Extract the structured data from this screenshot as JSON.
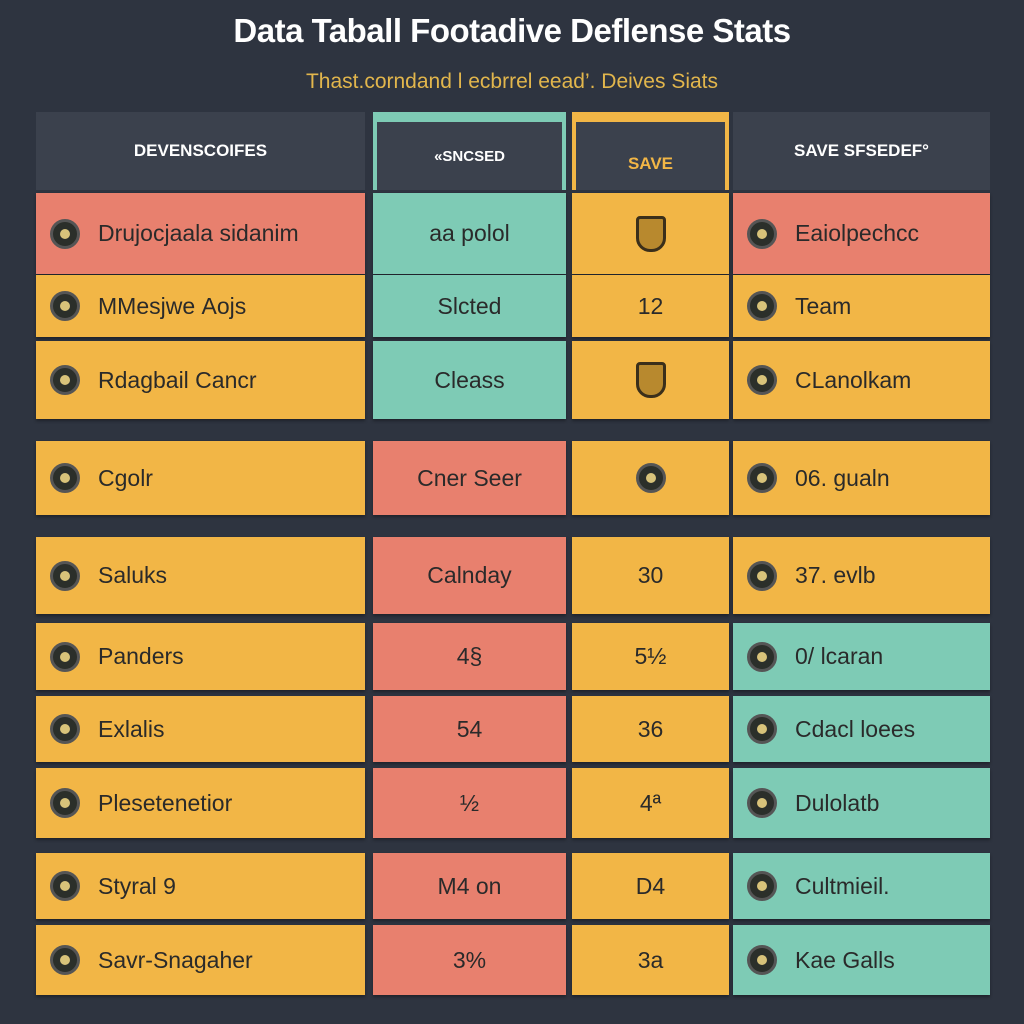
{
  "title": "Data Taball Footadive  Deflense Stats",
  "subtitle": "Thast.corndand l ecbrrel eead’. Deives Siats",
  "colors": {
    "background": "#2e3440",
    "header": "#3b414d",
    "salmon": "#e8806e",
    "yellow": "#f2b646",
    "teal": "#7ecbb5"
  },
  "headers": [
    "DEVENSCOIFES",
    "«SNCSED",
    "SAVE",
    "SAVE SFSEDEF°"
  ],
  "rows": [
    {
      "c1": "Drujocjaala sidanim",
      "c2": "aa polol",
      "c3": "",
      "c3_icon": "crest-icon",
      "c4": "Eaiolpechcc",
      "colors": [
        "salmon",
        "teal",
        "yellow",
        "salmon"
      ]
    },
    {
      "c1": "MMesjwe Aojs",
      "c2": "Slcted",
      "c3": "12",
      "c4": "Team",
      "colors": [
        "yellow",
        "teal",
        "yellow",
        "yellow"
      ]
    },
    {
      "c1": "Rdagbail Cancr",
      "c2": "Cleass",
      "c3": "",
      "c3_icon": "crest-icon",
      "c4": "CLanolkam",
      "colors": [
        "yellow",
        "teal",
        "yellow",
        "yellow"
      ]
    },
    {
      "c1": "Cgolr",
      "c2": "Cner Seer",
      "c3": "",
      "c3_icon": "badge-icon",
      "c4": "06. gualn",
      "colors": [
        "yellow",
        "salmon",
        "yellow",
        "yellow"
      ]
    },
    {
      "c1": "Saluks",
      "c2": "Calnday",
      "c3": "30",
      "c4": "37. evlb",
      "colors": [
        "yellow",
        "salmon",
        "yellow",
        "yellow"
      ]
    },
    {
      "c1": "Panders",
      "c2": "4§",
      "c3": "5½",
      "c4": "0/ lcaran",
      "colors": [
        "yellow",
        "salmon",
        "yellow",
        "teal"
      ]
    },
    {
      "c1": "Exlalis",
      "c2": "54",
      "c3": "36",
      "c4": "Cdacl loees",
      "colors": [
        "yellow",
        "salmon",
        "yellow",
        "teal"
      ]
    },
    {
      "c1": "Plesetenetior",
      "c2": "½",
      "c3": "4ª",
      "c4": "Dulolatb",
      "colors": [
        "yellow",
        "salmon",
        "yellow",
        "teal"
      ]
    },
    {
      "c1": "Styral 9",
      "c2": "M4 on",
      "c3": "D4",
      "c4": "Cultmieil.",
      "colors": [
        "yellow",
        "salmon",
        "yellow",
        "teal"
      ]
    },
    {
      "c1": "Savr-Snagaher",
      "c2": "3%",
      "c3": "3a",
      "c4": "Kae Galls",
      "colors": [
        "yellow",
        "salmon",
        "yellow",
        "teal"
      ]
    }
  ]
}
